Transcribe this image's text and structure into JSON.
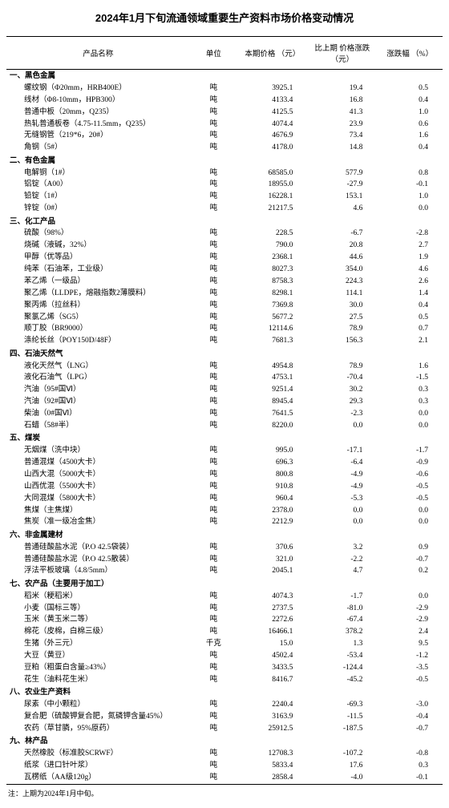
{
  "title": "2024年1月下旬流通领域重要生产资料市场价格变动情况",
  "headers": {
    "name": "产品名称",
    "unit": "单位",
    "price": "本期价格\n（元）",
    "change": "比上期\n价格涨跌\n（元）",
    "pct": "涨跌幅\n（%）"
  },
  "footnote": "注：上期为2024年1月中旬。",
  "sections": [
    {
      "heading": "一、黑色金属",
      "rows": [
        {
          "name": "螺纹钢（Φ20mm，HRB400E）",
          "unit": "吨",
          "price": "3925.1",
          "change": "19.4",
          "pct": "0.5"
        },
        {
          "name": "线材（Φ8-10mm，HPB300）",
          "unit": "吨",
          "price": "4133.4",
          "change": "16.8",
          "pct": "0.4"
        },
        {
          "name": "普通中板（20mm，Q235）",
          "unit": "吨",
          "price": "4125.5",
          "change": "41.3",
          "pct": "1.0"
        },
        {
          "name": "热轧普通板卷（4.75-11.5mm，Q235）",
          "unit": "吨",
          "price": "4074.4",
          "change": "23.9",
          "pct": "0.6"
        },
        {
          "name": "无缝钢管（219*6，20#）",
          "unit": "吨",
          "price": "4676.9",
          "change": "73.4",
          "pct": "1.6"
        },
        {
          "name": "角钢（5#）",
          "unit": "吨",
          "price": "4178.0",
          "change": "14.8",
          "pct": "0.4"
        }
      ]
    },
    {
      "heading": "二、有色金属",
      "rows": [
        {
          "name": "电解铜（1#）",
          "unit": "吨",
          "price": "68585.0",
          "change": "577.9",
          "pct": "0.8"
        },
        {
          "name": "铝锭（A00）",
          "unit": "吨",
          "price": "18955.0",
          "change": "-27.9",
          "pct": "-0.1"
        },
        {
          "name": "铅锭（1#）",
          "unit": "吨",
          "price": "16228.1",
          "change": "153.1",
          "pct": "1.0"
        },
        {
          "name": "锌锭（0#）",
          "unit": "吨",
          "price": "21217.5",
          "change": "4.6",
          "pct": "0.0"
        }
      ]
    },
    {
      "heading": "三、化工产品",
      "rows": [
        {
          "name": "硫酸（98%）",
          "unit": "吨",
          "price": "228.5",
          "change": "-6.7",
          "pct": "-2.8"
        },
        {
          "name": "烧碱（液碱，32%）",
          "unit": "吨",
          "price": "790.0",
          "change": "20.8",
          "pct": "2.7"
        },
        {
          "name": "甲醇（优等品）",
          "unit": "吨",
          "price": "2368.1",
          "change": "44.6",
          "pct": "1.9"
        },
        {
          "name": "纯苯（石油苯，工业级）",
          "unit": "吨",
          "price": "8027.3",
          "change": "354.0",
          "pct": "4.6"
        },
        {
          "name": "苯乙烯（一级品）",
          "unit": "吨",
          "price": "8758.3",
          "change": "224.3",
          "pct": "2.6"
        },
        {
          "name": "聚乙烯（LLDPE，熔融指数2薄膜料）",
          "unit": "吨",
          "price": "8298.1",
          "change": "114.1",
          "pct": "1.4"
        },
        {
          "name": "聚丙烯（拉丝料）",
          "unit": "吨",
          "price": "7369.8",
          "change": "30.0",
          "pct": "0.4"
        },
        {
          "name": "聚氯乙烯（SG5）",
          "unit": "吨",
          "price": "5677.2",
          "change": "27.5",
          "pct": "0.5"
        },
        {
          "name": "顺丁胶（BR9000）",
          "unit": "吨",
          "price": "12114.6",
          "change": "78.9",
          "pct": "0.7"
        },
        {
          "name": "涤纶长丝（POY150D/48F）",
          "unit": "吨",
          "price": "7681.3",
          "change": "156.3",
          "pct": "2.1"
        }
      ]
    },
    {
      "heading": "四、石油天然气",
      "rows": [
        {
          "name": "液化天然气（LNG）",
          "unit": "吨",
          "price": "4954.8",
          "change": "78.9",
          "pct": "1.6"
        },
        {
          "name": "液化石油气（LPG）",
          "unit": "吨",
          "price": "4753.1",
          "change": "-70.4",
          "pct": "-1.5"
        },
        {
          "name": "汽油（95#国Ⅵ）",
          "unit": "吨",
          "price": "9251.4",
          "change": "30.2",
          "pct": "0.3"
        },
        {
          "name": "汽油（92#国Ⅵ）",
          "unit": "吨",
          "price": "8945.4",
          "change": "29.3",
          "pct": "0.3"
        },
        {
          "name": "柴油（0#国Ⅵ）",
          "unit": "吨",
          "price": "7641.5",
          "change": "-2.3",
          "pct": "0.0"
        },
        {
          "name": "石蜡（58#半）",
          "unit": "吨",
          "price": "8220.0",
          "change": "0.0",
          "pct": "0.0"
        }
      ]
    },
    {
      "heading": "五、煤炭",
      "rows": [
        {
          "name": "无烟煤（洗中块）",
          "unit": "吨",
          "price": "995.0",
          "change": "-17.1",
          "pct": "-1.7"
        },
        {
          "name": "普通混煤（4500大卡）",
          "unit": "吨",
          "price": "696.3",
          "change": "-6.4",
          "pct": "-0.9"
        },
        {
          "name": "山西大混（5000大卡）",
          "unit": "吨",
          "price": "800.8",
          "change": "-4.9",
          "pct": "-0.6"
        },
        {
          "name": "山西优混（5500大卡）",
          "unit": "吨",
          "price": "910.8",
          "change": "-4.9",
          "pct": "-0.5"
        },
        {
          "name": "大同混煤（5800大卡）",
          "unit": "吨",
          "price": "960.4",
          "change": "-5.3",
          "pct": "-0.5"
        },
        {
          "name": "焦煤（主焦煤）",
          "unit": "吨",
          "price": "2378.0",
          "change": "0.0",
          "pct": "0.0"
        },
        {
          "name": "焦炭（准一级冶金焦）",
          "unit": "吨",
          "price": "2212.9",
          "change": "0.0",
          "pct": "0.0"
        }
      ]
    },
    {
      "heading": "六、非金属建材",
      "rows": [
        {
          "name": "普通硅酸盐水泥（P.O 42.5袋装）",
          "unit": "吨",
          "price": "370.6",
          "change": "3.2",
          "pct": "0.9"
        },
        {
          "name": "普通硅酸盐水泥（P.O 42.5散装）",
          "unit": "吨",
          "price": "321.0",
          "change": "-2.2",
          "pct": "-0.7"
        },
        {
          "name": "浮法平板玻璃（4.8/5mm）",
          "unit": "吨",
          "price": "2045.1",
          "change": "4.7",
          "pct": "0.2"
        }
      ]
    },
    {
      "heading": "七、农产品（主要用于加工）",
      "rows": [
        {
          "name": "稻米（粳稻米）",
          "unit": "吨",
          "price": "4074.3",
          "change": "-1.7",
          "pct": "0.0"
        },
        {
          "name": "小麦（国标三等）",
          "unit": "吨",
          "price": "2737.5",
          "change": "-81.0",
          "pct": "-2.9"
        },
        {
          "name": "玉米（黄玉米二等）",
          "unit": "吨",
          "price": "2272.6",
          "change": "-67.4",
          "pct": "-2.9"
        },
        {
          "name": "棉花（皮棉，白棉三级）",
          "unit": "吨",
          "price": "16466.1",
          "change": "378.2",
          "pct": "2.4"
        },
        {
          "name": "生猪（外三元）",
          "unit": "千克",
          "price": "15.0",
          "change": "1.3",
          "pct": "9.5"
        },
        {
          "name": "大豆（黄豆）",
          "unit": "吨",
          "price": "4502.4",
          "change": "-53.4",
          "pct": "-1.2"
        },
        {
          "name": "豆粕（粗蛋白含量≥43%）",
          "unit": "吨",
          "price": "3433.5",
          "change": "-124.4",
          "pct": "-3.5"
        },
        {
          "name": "花生（油料花生米）",
          "unit": "吨",
          "price": "8416.7",
          "change": "-45.2",
          "pct": "-0.5"
        }
      ]
    },
    {
      "heading": "八、农业生产资料",
      "rows": [
        {
          "name": "尿素（中小颗粒）",
          "unit": "吨",
          "price": "2240.4",
          "change": "-69.3",
          "pct": "-3.0"
        },
        {
          "name": "复合肥（硫酸钾复合肥，氮磷钾含量45%）",
          "unit": "吨",
          "price": "3163.9",
          "change": "-11.5",
          "pct": "-0.4"
        },
        {
          "name": "农药（草甘膦，95%原药）",
          "unit": "吨",
          "price": "25912.5",
          "change": "-187.5",
          "pct": "-0.7"
        }
      ]
    },
    {
      "heading": "九、林产品",
      "rows": [
        {
          "name": "天然橡胶（标准胶SCRWF）",
          "unit": "吨",
          "price": "12708.3",
          "change": "-107.2",
          "pct": "-0.8"
        },
        {
          "name": "纸浆（进口针叶浆）",
          "unit": "吨",
          "price": "5833.4",
          "change": "17.6",
          "pct": "0.3"
        },
        {
          "name": "瓦楞纸（AA级120g）",
          "unit": "吨",
          "price": "2858.4",
          "change": "-4.0",
          "pct": "-0.1"
        }
      ]
    }
  ]
}
